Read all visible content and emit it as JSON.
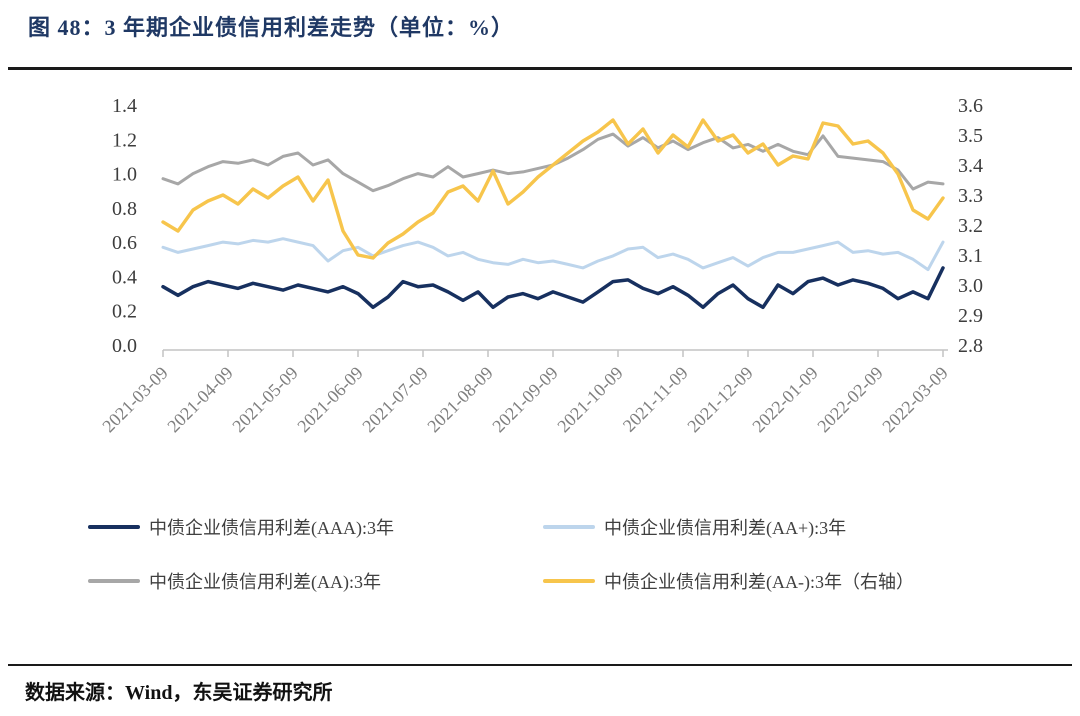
{
  "figure": {
    "title": "图 48：3 年期企业债信用利差走势（单位：%）",
    "source": "数据来源：Wind，东吴证券研究所"
  },
  "chart_data": {
    "type": "line",
    "title": "3 年期企业债信用利差走势（单位：%）",
    "grid": false,
    "legend_position": "bottom",
    "x_tick_labels": [
      "2021-03-09",
      "2021-04-09",
      "2021-05-09",
      "2021-06-09",
      "2021-07-09",
      "2021-08-09",
      "2021-09-09",
      "2021-10-09",
      "2021-11-09",
      "2021-12-09",
      "2022-01-09",
      "2022-02-09",
      "2022-03-09"
    ],
    "left_axis": {
      "min": 0.0,
      "max": 1.4,
      "ticks": [
        "1.4",
        "1.2",
        "1.0",
        "0.8",
        "0.6",
        "0.4",
        "0.2",
        "0.0"
      ]
    },
    "right_axis": {
      "min": 2.8,
      "max": 3.6,
      "ticks": [
        "3.6",
        "3.5",
        "3.4",
        "3.3",
        "3.2",
        "3.1",
        "3.0",
        "2.9",
        "2.8"
      ]
    },
    "series": [
      {
        "id": "aaa",
        "name": "中债企业债信用利差(AAA):3年",
        "axis": "left",
        "color": "#17305F",
        "values": [
          0.34,
          0.29,
          0.34,
          0.37,
          0.35,
          0.33,
          0.36,
          0.34,
          0.32,
          0.35,
          0.33,
          0.31,
          0.34,
          0.3,
          0.22,
          0.28,
          0.37,
          0.34,
          0.35,
          0.31,
          0.26,
          0.31,
          0.22,
          0.28,
          0.3,
          0.27,
          0.31,
          0.28,
          0.25,
          0.31,
          0.37,
          0.38,
          0.33,
          0.3,
          0.34,
          0.29,
          0.22,
          0.3,
          0.35,
          0.27,
          0.22,
          0.35,
          0.3,
          0.37,
          0.39,
          0.35,
          0.38,
          0.36,
          0.33,
          0.27,
          0.31,
          0.27,
          0.45
        ]
      },
      {
        "id": "aa-plus",
        "name": "中债企业债信用利差(AA+):3年",
        "axis": "left",
        "color": "#BDD5EC",
        "values": [
          0.57,
          0.54,
          0.56,
          0.58,
          0.6,
          0.59,
          0.61,
          0.6,
          0.62,
          0.6,
          0.58,
          0.49,
          0.55,
          0.57,
          0.52,
          0.55,
          0.58,
          0.6,
          0.57,
          0.52,
          0.54,
          0.5,
          0.48,
          0.47,
          0.5,
          0.48,
          0.49,
          0.47,
          0.45,
          0.49,
          0.52,
          0.56,
          0.57,
          0.51,
          0.53,
          0.5,
          0.45,
          0.48,
          0.51,
          0.46,
          0.51,
          0.54,
          0.54,
          0.56,
          0.58,
          0.6,
          0.54,
          0.55,
          0.53,
          0.54,
          0.5,
          0.44,
          0.6
        ]
      },
      {
        "id": "aa",
        "name": "中债企业债信用利差(AA):3年",
        "axis": "left",
        "color": "#A7A7A7",
        "values": [
          0.97,
          0.94,
          1.0,
          1.04,
          1.07,
          1.06,
          1.08,
          1.05,
          1.1,
          1.12,
          1.05,
          1.08,
          1.0,
          0.95,
          0.9,
          0.93,
          0.97,
          1.0,
          0.98,
          1.04,
          0.98,
          1.0,
          1.02,
          1.0,
          1.01,
          1.03,
          1.05,
          1.09,
          1.14,
          1.2,
          1.23,
          1.16,
          1.21,
          1.15,
          1.19,
          1.14,
          1.18,
          1.21,
          1.15,
          1.17,
          1.13,
          1.17,
          1.13,
          1.11,
          1.22,
          1.1,
          1.09,
          1.08,
          1.07,
          1.02,
          0.91,
          0.95,
          0.94
        ]
      },
      {
        "id": "aa-minus",
        "name": "中债企业债信用利差(AA-):3年（右轴）",
        "axis": "right",
        "color": "#F7C54C",
        "values": [
          3.21,
          3.18,
          3.25,
          3.28,
          3.3,
          3.27,
          3.32,
          3.29,
          3.33,
          3.36,
          3.28,
          3.35,
          3.18,
          3.1,
          3.09,
          3.14,
          3.17,
          3.21,
          3.24,
          3.31,
          3.33,
          3.28,
          3.38,
          3.27,
          3.31,
          3.36,
          3.4,
          3.44,
          3.48,
          3.51,
          3.55,
          3.47,
          3.52,
          3.44,
          3.5,
          3.46,
          3.55,
          3.48,
          3.5,
          3.44,
          3.47,
          3.4,
          3.43,
          3.42,
          3.54,
          3.53,
          3.47,
          3.48,
          3.44,
          3.37,
          3.25,
          3.22,
          3.29
        ]
      }
    ]
  }
}
